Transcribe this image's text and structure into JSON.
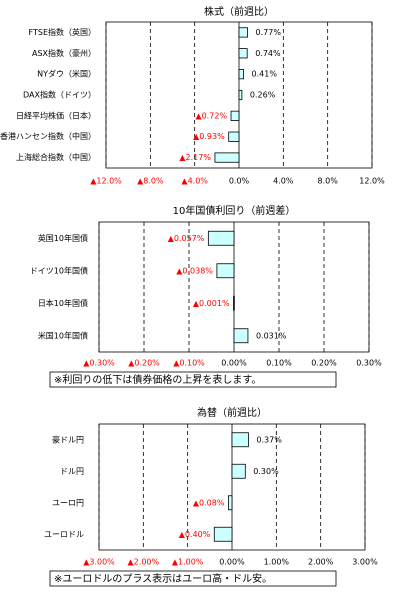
{
  "chart_data": [
    {
      "type": "bar",
      "orientation": "horizontal",
      "title": "株式（前週比）",
      "categories": [
        "FTSE指数（英国）",
        "ASX指数（豪州）",
        "NYダウ（米国）",
        "DAX指数（ドイツ）",
        "日経平均株価（日本）",
        "香港ハンセン指数（中国）",
        "上海総合指数（中国）"
      ],
      "values": [
        0.77,
        0.74,
        0.41,
        0.26,
        -0.72,
        -0.93,
        -2.17
      ],
      "value_labels": [
        "0.77%",
        "0.74%",
        "0.41%",
        "0.26%",
        "▲0.72%",
        "▲0.93%",
        "▲2.17%"
      ],
      "color": "#ccffff",
      "negative_label_color": "#ff0000",
      "xlim": [
        -12,
        12
      ],
      "xticks": [
        {
          "value": -12,
          "label": "▲12.0%"
        },
        {
          "value": -8,
          "label": "▲8.0%"
        },
        {
          "value": -4,
          "label": "▲4.0%"
        },
        {
          "value": 0,
          "label": "0.0%"
        },
        {
          "value": 4,
          "label": "4.0%"
        },
        {
          "value": 8,
          "label": "8.0%"
        },
        {
          "value": 12,
          "label": "12.0%"
        }
      ],
      "grid": true
    },
    {
      "type": "bar",
      "orientation": "horizontal",
      "title": "10年国債利回り（前週差）",
      "categories": [
        "英国10年国債",
        "ドイツ10年国債",
        "日本10年国債",
        "米国10年国債"
      ],
      "values": [
        -0.057,
        -0.038,
        -0.001,
        0.031
      ],
      "value_labels": [
        "▲0.057%",
        "▲0.038%",
        "▲0.001%",
        "0.031%"
      ],
      "color": "#ccffff",
      "negative_label_color": "#ff0000",
      "xlim": [
        -0.3,
        0.3
      ],
      "xticks": [
        {
          "value": -0.3,
          "label": "▲0.30%"
        },
        {
          "value": -0.2,
          "label": "▲0.20%"
        },
        {
          "value": -0.1,
          "label": "▲0.10%"
        },
        {
          "value": 0,
          "label": "0.00%"
        },
        {
          "value": 0.1,
          "label": "0.10%"
        },
        {
          "value": 0.2,
          "label": "0.20%"
        },
        {
          "value": 0.3,
          "label": "0.30%"
        }
      ],
      "grid": true,
      "note": "※利回りの低下は債券価格の上昇を表します。"
    },
    {
      "type": "bar",
      "orientation": "horizontal",
      "title": "為替（前週比）",
      "categories": [
        "豪ドル円",
        "ドル円",
        "ユーロ円",
        "ユーロドル"
      ],
      "values": [
        0.37,
        0.3,
        -0.08,
        -0.4
      ],
      "value_labels": [
        "0.37%",
        "0.30%",
        "▲0.08%",
        "▲0.40%"
      ],
      "color": "#ccffff",
      "negative_label_color": "#ff0000",
      "xlim": [
        -3,
        3
      ],
      "xticks": [
        {
          "value": -3,
          "label": "▲3.00%"
        },
        {
          "value": -2,
          "label": "▲2.00%"
        },
        {
          "value": -1,
          "label": "▲1.00%"
        },
        {
          "value": 0,
          "label": "0.00%"
        },
        {
          "value": 1,
          "label": "1.00%"
        },
        {
          "value": 2,
          "label": "2.00%"
        },
        {
          "value": 3,
          "label": "3.00%"
        }
      ],
      "grid": true,
      "note": "※ユーロドルのプラス表示はユーロ高・ドル安。"
    }
  ]
}
